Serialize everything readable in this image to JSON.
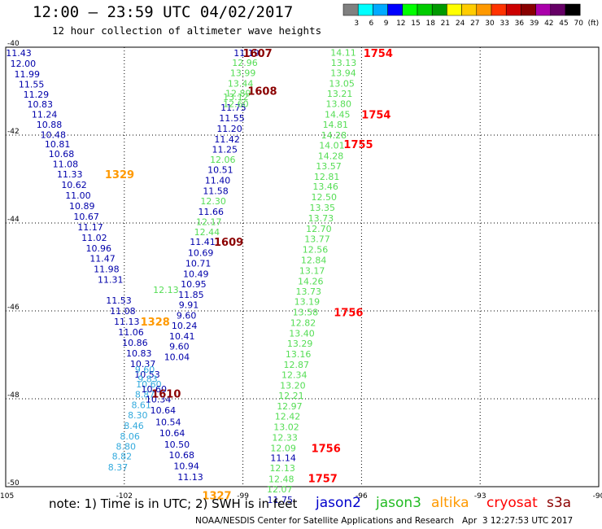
{
  "header": {
    "title": "12:00 – 23:59 UTC 04/02/2017",
    "subtitle": "12 hour collection of altimeter wave heights"
  },
  "footer": {
    "note": "note: 1) Time is in UTC; 2) SWH is in feet",
    "credit": "NOAA/NESDIS Center for Satellite Applications and Research   Apr  3 12:27:53 UTC 2017"
  },
  "colors": {
    "jason2": "#0000aa",
    "jason3": "#33cc33",
    "altika": "#ff9900",
    "cryosat": "#ff0000",
    "s3a": "#8b0000",
    "light_blue": "#33aadd"
  },
  "legend_satellites": [
    {
      "name": "jason2",
      "color": "#0000cc"
    },
    {
      "name": "jason3",
      "color": "#22bb22"
    },
    {
      "name": "altika",
      "color": "#ff9900"
    },
    {
      "name": "cryosat",
      "color": "#ff0000"
    },
    {
      "name": "s3a",
      "color": "#8b0000"
    }
  ],
  "colorbar": {
    "labels": [
      "3",
      "6",
      "9",
      "12",
      "15",
      "18",
      "21",
      "24",
      "27",
      "30",
      "33",
      "36",
      "39",
      "42",
      "45",
      "70",
      "(ft)"
    ],
    "colors": [
      "#808080",
      "#00ffff",
      "#00aaff",
      "#0000ff",
      "#00ff00",
      "#00cc00",
      "#009900",
      "#ffff00",
      "#ffcc00",
      "#ff9900",
      "#ff3300",
      "#cc0000",
      "#880000",
      "#aa00aa",
      "#660066",
      "#000000"
    ]
  },
  "chart_data": {
    "type": "scatter",
    "title": "12:00 – 23:59 UTC 04/02/2017",
    "xlim": [
      -105,
      -90
    ],
    "ylim": [
      -50,
      -40
    ],
    "x_ticks": [
      -105,
      -102,
      -99,
      -96,
      -93,
      -90
    ],
    "y_ticks": [
      -40,
      -42,
      -44,
      -46,
      -48,
      -50
    ],
    "grid": true,
    "tracks": [
      {
        "name": "jason2 (west)",
        "color": "#0000aa",
        "points": [
          {
            "lon": -104.67,
            "lat": -40.13,
            "v": "11.43"
          },
          {
            "lon": -104.56,
            "lat": -40.37,
            "v": "12.00"
          },
          {
            "lon": -104.46,
            "lat": -40.61,
            "v": "11.99"
          },
          {
            "lon": -104.35,
            "lat": -40.84,
            "v": "11.55"
          },
          {
            "lon": -104.23,
            "lat": -41.07,
            "v": "11.29"
          },
          {
            "lon": -104.13,
            "lat": -41.3,
            "v": "10.83"
          },
          {
            "lon": -104.02,
            "lat": -41.53,
            "v": "11.24"
          },
          {
            "lon": -103.9,
            "lat": -41.76,
            "v": "10.88"
          },
          {
            "lon": -103.8,
            "lat": -41.99,
            "v": "10.48"
          },
          {
            "lon": -103.69,
            "lat": -42.2,
            "v": "10.81"
          },
          {
            "lon": -103.59,
            "lat": -42.43,
            "v": "10.68"
          },
          {
            "lon": -103.49,
            "lat": -42.66,
            "v": "11.08"
          },
          {
            "lon": -103.38,
            "lat": -42.89,
            "v": "11.33"
          },
          {
            "lon": -103.27,
            "lat": -43.13,
            "v": "10.62"
          },
          {
            "lon": -103.17,
            "lat": -43.37,
            "v": "11.00"
          },
          {
            "lon": -103.07,
            "lat": -43.61,
            "v": "10.89"
          },
          {
            "lon": -102.96,
            "lat": -43.85,
            "v": "10.67"
          },
          {
            "lon": -102.86,
            "lat": -44.09,
            "v": "11.17"
          },
          {
            "lon": -102.76,
            "lat": -44.33,
            "v": "11.02"
          },
          {
            "lon": -102.65,
            "lat": -44.57,
            "v": "10.96"
          },
          {
            "lon": -102.55,
            "lat": -44.81,
            "v": "11.47"
          },
          {
            "lon": -102.45,
            "lat": -45.05,
            "v": "11.98"
          },
          {
            "lon": -102.35,
            "lat": -45.29,
            "v": "11.31"
          },
          {
            "lon": -102.14,
            "lat": -45.76,
            "v": "11.53"
          },
          {
            "lon": -102.04,
            "lat": -46.0,
            "v": "11.08"
          },
          {
            "lon": -101.94,
            "lat": -46.24,
            "v": "11.13"
          },
          {
            "lon": -101.83,
            "lat": -46.48,
            "v": "11.06"
          },
          {
            "lon": -101.73,
            "lat": -46.72,
            "v": "10.86"
          },
          {
            "lon": -101.63,
            "lat": -46.96,
            "v": "10.83"
          },
          {
            "lon": -101.53,
            "lat": -47.2,
            "v": "10.37"
          },
          {
            "lon": -101.42,
            "lat": -47.44,
            "v": "10.53"
          }
        ]
      },
      {
        "name": "jason2 (west) light",
        "color": "#33aadd",
        "points": [
          {
            "lon": -101.48,
            "lat": -47.33,
            "v": "9.60"
          },
          {
            "lon": -101.41,
            "lat": -47.55,
            "v": "9.83"
          },
          {
            "lon": -101.38,
            "lat": -47.67,
            "v": "10.60"
          },
          {
            "lon": -101.48,
            "lat": -47.9,
            "v": "8.87"
          },
          {
            "lon": -101.57,
            "lat": -48.14,
            "v": "8.61"
          },
          {
            "lon": -101.66,
            "lat": -48.37,
            "v": "8.30"
          },
          {
            "lon": -101.76,
            "lat": -48.61,
            "v": "8.46"
          },
          {
            "lon": -101.86,
            "lat": -48.85,
            "v": "8.06"
          },
          {
            "lon": -101.96,
            "lat": -49.08,
            "v": "8.80"
          },
          {
            "lon": -102.06,
            "lat": -49.31,
            "v": "8.82"
          },
          {
            "lon": -102.16,
            "lat": -49.56,
            "v": "8.37"
          }
        ]
      },
      {
        "name": "jason2 (middle)",
        "color": "#0000aa",
        "points": [
          {
            "lon": -98.91,
            "lat": -40.13,
            "v": "11.19"
          },
          {
            "lon": -99.24,
            "lat": -41.37,
            "v": "11.75"
          },
          {
            "lon": -99.28,
            "lat": -41.61,
            "v": "11.55"
          },
          {
            "lon": -99.34,
            "lat": -41.85,
            "v": "11.20"
          },
          {
            "lon": -99.4,
            "lat": -42.09,
            "v": "11.42"
          },
          {
            "lon": -99.46,
            "lat": -42.32,
            "v": "11.25"
          },
          {
            "lon": -99.57,
            "lat": -42.79,
            "v": "10.51"
          },
          {
            "lon": -99.64,
            "lat": -43.03,
            "v": "11.40"
          },
          {
            "lon": -99.69,
            "lat": -43.27,
            "v": "11.58"
          },
          {
            "lon": -99.81,
            "lat": -43.74,
            "v": "11.66"
          },
          {
            "lon": -100.02,
            "lat": -44.43,
            "v": "11.41"
          },
          {
            "lon": -100.07,
            "lat": -44.68,
            "v": "10.69"
          },
          {
            "lon": -100.13,
            "lat": -44.92,
            "v": "10.71"
          },
          {
            "lon": -100.19,
            "lat": -45.16,
            "v": "10.49"
          },
          {
            "lon": -100.25,
            "lat": -45.39,
            "v": "10.95"
          },
          {
            "lon": -100.31,
            "lat": -45.63,
            "v": "11.85"
          },
          {
            "lon": -100.37,
            "lat": -45.86,
            "v": "9.91"
          },
          {
            "lon": -100.43,
            "lat": -46.1,
            "v": "9.60"
          },
          {
            "lon": -100.48,
            "lat": -46.33,
            "v": "10.24"
          },
          {
            "lon": -100.54,
            "lat": -46.57,
            "v": "10.41"
          },
          {
            "lon": -100.61,
            "lat": -46.81,
            "v": "9.60"
          },
          {
            "lon": -100.67,
            "lat": -47.05,
            "v": "10.04"
          },
          {
            "lon": -101.25,
            "lat": -47.78,
            "v": "10.60"
          },
          {
            "lon": -101.14,
            "lat": -48.01,
            "v": "10.34"
          },
          {
            "lon": -101.02,
            "lat": -48.26,
            "v": "10.64"
          },
          {
            "lon": -100.89,
            "lat": -48.53,
            "v": "10.54"
          },
          {
            "lon": -100.79,
            "lat": -48.78,
            "v": "10.64"
          },
          {
            "lon": -100.67,
            "lat": -49.04,
            "v": "10.50"
          },
          {
            "lon": -100.55,
            "lat": -49.28,
            "v": "10.68"
          },
          {
            "lon": -100.43,
            "lat": -49.53,
            "v": "10.94"
          },
          {
            "lon": -100.33,
            "lat": -49.78,
            "v": "11.13"
          }
        ]
      },
      {
        "name": "jason3 (middle)",
        "color": "#55dd55",
        "points": [
          {
            "lon": -98.95,
            "lat": -40.35,
            "v": "12.96"
          },
          {
            "lon": -99.0,
            "lat": -40.58,
            "v": "13.99"
          },
          {
            "lon": -99.06,
            "lat": -40.82,
            "v": "13.44"
          },
          {
            "lon": -99.12,
            "lat": -41.05,
            "v": "12.89"
          },
          {
            "lon": -99.18,
            "lat": -41.13,
            "v": "13.12"
          },
          {
            "lon": -99.18,
            "lat": -41.29,
            "v": "12.60"
          },
          {
            "lon": -99.51,
            "lat": -42.56,
            "v": "12.06"
          },
          {
            "lon": -99.75,
            "lat": -43.5,
            "v": "12.30"
          },
          {
            "lon": -99.86,
            "lat": -43.97,
            "v": "12.17"
          },
          {
            "lon": -99.91,
            "lat": -44.2,
            "v": "12.44"
          },
          {
            "lon": -100.95,
            "lat": -45.52,
            "v": "12.13"
          }
        ]
      },
      {
        "name": "jason3 (east)",
        "color": "#55dd55",
        "points": [
          {
            "lon": -96.46,
            "lat": -40.12,
            "v": "14.11"
          },
          {
            "lon": -96.45,
            "lat": -40.35,
            "v": "13.13"
          },
          {
            "lon": -96.46,
            "lat": -40.58,
            "v": "13.94"
          },
          {
            "lon": -96.5,
            "lat": -40.82,
            "v": "13.05"
          },
          {
            "lon": -96.55,
            "lat": -41.06,
            "v": "13.21"
          },
          {
            "lon": -96.58,
            "lat": -41.29,
            "v": "13.80"
          },
          {
            "lon": -96.61,
            "lat": -41.53,
            "v": "14.45"
          },
          {
            "lon": -96.66,
            "lat": -41.76,
            "v": "14.81"
          },
          {
            "lon": -96.7,
            "lat": -42.0,
            "v": "14.28"
          },
          {
            "lon": -96.75,
            "lat": -42.23,
            "v": "14.01"
          },
          {
            "lon": -96.78,
            "lat": -42.47,
            "v": "14.28"
          },
          {
            "lon": -96.83,
            "lat": -42.7,
            "v": "13.57"
          },
          {
            "lon": -96.88,
            "lat": -42.94,
            "v": "12.81"
          },
          {
            "lon": -96.91,
            "lat": -43.17,
            "v": "13.46"
          },
          {
            "lon": -96.95,
            "lat": -43.41,
            "v": "12.50"
          },
          {
            "lon": -96.99,
            "lat": -43.65,
            "v": "13.35"
          },
          {
            "lon": -97.03,
            "lat": -43.89,
            "v": "13.73"
          },
          {
            "lon": -97.08,
            "lat": -44.13,
            "v": "12.70"
          },
          {
            "lon": -97.12,
            "lat": -44.36,
            "v": "13.77"
          },
          {
            "lon": -97.17,
            "lat": -44.6,
            "v": "12.56"
          },
          {
            "lon": -97.21,
            "lat": -44.84,
            "v": "12.84"
          },
          {
            "lon": -97.25,
            "lat": -45.08,
            "v": "13.17"
          },
          {
            "lon": -97.29,
            "lat": -45.32,
            "v": "14.26"
          },
          {
            "lon": -97.34,
            "lat": -45.56,
            "v": "13.73"
          },
          {
            "lon": -97.38,
            "lat": -45.79,
            "v": "13.19"
          },
          {
            "lon": -97.42,
            "lat": -46.03,
            "v": "13.58"
          },
          {
            "lon": -97.48,
            "lat": -46.27,
            "v": "12.82"
          },
          {
            "lon": -97.51,
            "lat": -46.51,
            "v": "13.40"
          },
          {
            "lon": -97.56,
            "lat": -46.74,
            "v": "13.29"
          },
          {
            "lon": -97.6,
            "lat": -46.98,
            "v": "13.16"
          },
          {
            "lon": -97.65,
            "lat": -47.22,
            "v": "12.87"
          },
          {
            "lon": -97.7,
            "lat": -47.45,
            "v": "12.34"
          },
          {
            "lon": -97.74,
            "lat": -47.69,
            "v": "13.20"
          },
          {
            "lon": -97.78,
            "lat": -47.93,
            "v": "12.21"
          },
          {
            "lon": -97.82,
            "lat": -48.17,
            "v": "12.97"
          },
          {
            "lon": -97.87,
            "lat": -48.4,
            "v": "12.42"
          },
          {
            "lon": -97.9,
            "lat": -48.64,
            "v": "13.02"
          },
          {
            "lon": -97.94,
            "lat": -48.88,
            "v": "12.33"
          },
          {
            "lon": -97.98,
            "lat": -49.12,
            "v": "12.09"
          },
          {
            "lon": -98.0,
            "lat": -49.57,
            "v": "12.13"
          },
          {
            "lon": -98.03,
            "lat": -49.82,
            "v": "12.48"
          },
          {
            "lon": -98.07,
            "lat": -50.06,
            "v": "12.07"
          }
        ]
      },
      {
        "name": "jason2 (east)",
        "color": "#0000aa",
        "points": [
          {
            "lon": -97.98,
            "lat": -49.34,
            "v": "11.14"
          },
          {
            "lon": -98.06,
            "lat": -50.3,
            "v": "11.75"
          }
        ]
      }
    ],
    "time_labels": [
      {
        "lon": -98.63,
        "lat": -40.13,
        "v": "1607",
        "color": "#8b0000"
      },
      {
        "lon": -95.58,
        "lat": -40.13,
        "v": "1754",
        "color": "#ff0000"
      },
      {
        "lon": -98.51,
        "lat": -40.99,
        "v": "1608",
        "color": "#8b0000"
      },
      {
        "lon": -95.63,
        "lat": -41.53,
        "v": "1754",
        "color": "#ff0000"
      },
      {
        "lon": -96.08,
        "lat": -42.2,
        "v": "1755",
        "color": "#ff0000"
      },
      {
        "lon": -102.12,
        "lat": -42.89,
        "v": "1329",
        "color": "#ff9900"
      },
      {
        "lon": -99.36,
        "lat": -44.43,
        "v": "1609",
        "color": "#8b0000"
      },
      {
        "lon": -96.33,
        "lat": -46.03,
        "v": "1756",
        "color": "#ff0000"
      },
      {
        "lon": -101.22,
        "lat": -46.24,
        "v": "1328",
        "color": "#ff9900"
      },
      {
        "lon": -100.94,
        "lat": -47.88,
        "v": "1610",
        "color": "#8b0000"
      },
      {
        "lon": -96.9,
        "lat": -49.12,
        "v": "1756",
        "color": "#ff0000"
      },
      {
        "lon": -96.98,
        "lat": -49.81,
        "v": "1757",
        "color": "#ff0000"
      },
      {
        "lon": -99.66,
        "lat": -50.19,
        "v": "1327",
        "color": "#ff9900"
      }
    ]
  }
}
